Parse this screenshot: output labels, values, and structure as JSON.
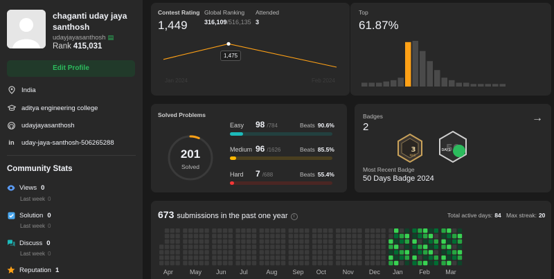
{
  "profile": {
    "name": "chaganti uday jaya santhosh",
    "handle": "udayjayasanthosh",
    "rank_label": "Rank",
    "rank_value": "415,031",
    "edit_button": "Edit Profile",
    "location": "India",
    "school": "aditya engineering college",
    "github": "udayjayasanthosh",
    "linkedin": "uday-jaya-santhosh-506265288"
  },
  "community": {
    "title": "Community Stats",
    "views_label": "Views",
    "views_value": "0",
    "solution_label": "Solution",
    "solution_value": "0",
    "discuss_label": "Discuss",
    "discuss_value": "0",
    "reputation_label": "Reputation",
    "reputation_value": "1",
    "last_week_label": "Last week",
    "last_week_value": "0"
  },
  "contest": {
    "rating_label": "Contest Rating",
    "rating_value": "1,449",
    "global_label": "Global Ranking",
    "global_value": "316,109",
    "global_total": "/516,135",
    "attended_label": "Attended",
    "attended_value": "3",
    "tooltip_value": "1,475",
    "axis_start": "Jan 2024",
    "axis_end": "Feb 2024",
    "rating_points": [
      1425,
      1475,
      1400
    ],
    "top_label": "Top",
    "top_value": "61.87%",
    "histogram": [
      3,
      3,
      3,
      4,
      5,
      7,
      35,
      36,
      28,
      20,
      13,
      7,
      5,
      3,
      3,
      2,
      2,
      2,
      2,
      2
    ],
    "histogram_highlight_index": 6
  },
  "solved": {
    "title": "Solved Problems",
    "total": "201",
    "total_label": "Solved",
    "total_fraction": 0.064,
    "difficulties": [
      {
        "name": "Easy",
        "count": "98",
        "total": "/784",
        "beats_label": "Beats",
        "beats": "90.6%",
        "fill": 0.125,
        "color": "#1cbaba",
        "track": "#22403f"
      },
      {
        "name": "Medium",
        "count": "96",
        "total": "/1626",
        "beats_label": "Beats",
        "beats": "85.5%",
        "fill": 0.059,
        "color": "#ffb700",
        "track": "#4a3f1f"
      },
      {
        "name": "Hard",
        "count": "7",
        "total": "/688",
        "beats_label": "Beats",
        "beats": "55.4%",
        "fill": 0.01,
        "color": "#f63737",
        "track": "#4a2623"
      }
    ]
  },
  "badges": {
    "label": "Badges",
    "count": "2",
    "badge1_text": "3",
    "badge1_sub": "MAR",
    "badge2_text": "50",
    "badge2_sub": "DAYS",
    "recent_label": "Most Recent Badge",
    "recent_value": "50 Days Badge 2024"
  },
  "submissions": {
    "count": "673",
    "title": "submissions in the past one year",
    "active_days_label": "Total active days:",
    "active_days": "84",
    "max_streak_label": "Max streak:",
    "max_streak": "20",
    "months": [
      "Apr",
      "May",
      "Jun",
      "Jul",
      "Aug",
      "Sep",
      "Oct",
      "Nov",
      "Dec",
      "Jan",
      "Feb",
      "Mar"
    ],
    "colors": {
      "empty": "#3a3a3a",
      "level1": "#0e4429",
      "level2": "#006d32",
      "level3": "#26a641",
      "level4": "#39d353"
    }
  }
}
